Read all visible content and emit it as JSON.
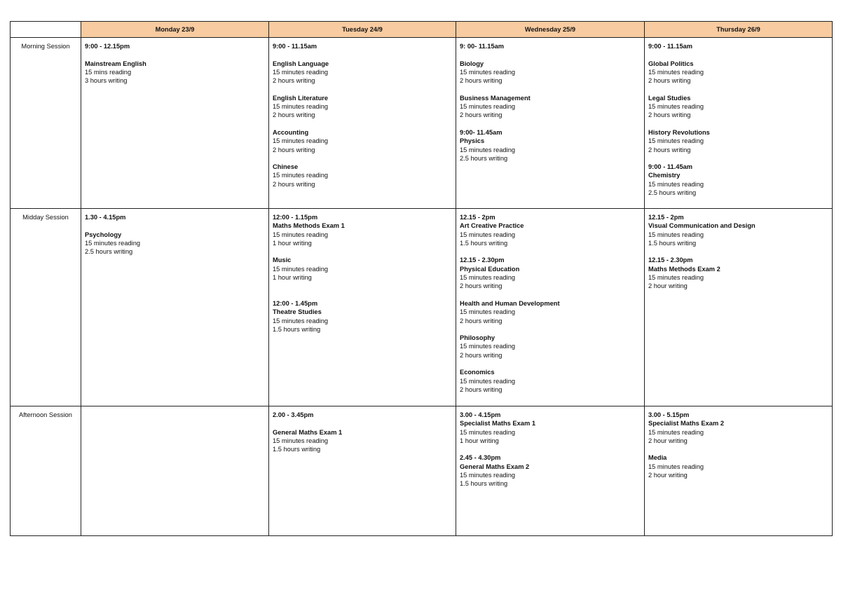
{
  "header": {
    "corner": "",
    "days": [
      "Monday 23/9",
      "Tuesday 24/9",
      "Wednesday 25/9",
      "Thursday 26/9"
    ]
  },
  "colors": {
    "header_bg": "#f8cba0",
    "border": "#222222"
  },
  "rows": [
    {
      "label": "Morning Session",
      "cells": [
        [
          {
            "t": "9:00 - 12.15pm",
            "b": true
          },
          {
            "t": ""
          },
          {
            "t": "Mainstream English",
            "b": true
          },
          {
            "t": "15 mins reading"
          },
          {
            "t": "3 hours writing"
          }
        ],
        [
          {
            "t": "9:00 - 11.15am",
            "b": true
          },
          {
            "t": ""
          },
          {
            "t": "English Language",
            "b": true
          },
          {
            "t": "15 minutes reading"
          },
          {
            "t": "2 hours writing"
          },
          {
            "t": ""
          },
          {
            "t": "English Literature",
            "b": true
          },
          {
            "t": "15 minutes reading"
          },
          {
            "t": "2 hours writing"
          },
          {
            "t": ""
          },
          {
            "t": "Accounting",
            "b": true
          },
          {
            "t": "15 minutes reading"
          },
          {
            "t": "2 hours writing"
          },
          {
            "t": ""
          },
          {
            "t": "Chinese",
            "b": true
          },
          {
            "t": "15 minutes reading"
          },
          {
            "t": "2 hours writing"
          }
        ],
        [
          {
            "t": "9: 00- 11.15am",
            "b": true
          },
          {
            "t": ""
          },
          {
            "t": "Biology",
            "b": true
          },
          {
            "t": "15 minutes reading"
          },
          {
            "t": "2 hours writing"
          },
          {
            "t": ""
          },
          {
            "t": "Business Management",
            "b": true
          },
          {
            "t": "15 minutes reading"
          },
          {
            "t": "2 hours writing"
          },
          {
            "t": ""
          },
          {
            "t": "9:00- 11.45am",
            "b": true
          },
          {
            "t": "Physics",
            "b": true
          },
          {
            "t": "15 minutes reading"
          },
          {
            "t": "2.5 hours writing"
          }
        ],
        [
          {
            "t": "9:00 - 11.15am",
            "b": true
          },
          {
            "t": ""
          },
          {
            "t": "Global Politics",
            "b": true
          },
          {
            "t": "15 minutes reading"
          },
          {
            "t": "2 hours writing"
          },
          {
            "t": ""
          },
          {
            "t": "Legal Studies",
            "b": true
          },
          {
            "t": "15 minutes reading"
          },
          {
            "t": "2 hours writing"
          },
          {
            "t": ""
          },
          {
            "t": "History Revolutions",
            "b": true
          },
          {
            "t": "15 minutes reading"
          },
          {
            "t": "2 hours writing"
          },
          {
            "t": ""
          },
          {
            "t": "9:00 - 11.45am",
            "b": true
          },
          {
            "t": "Chemistry",
            "b": true
          },
          {
            "t": "15 minutes reading"
          },
          {
            "t": "2.5 hours writing"
          }
        ]
      ]
    },
    {
      "label": "Midday Session",
      "cells": [
        [
          {
            "t": "1.30 - 4.15pm",
            "b": true
          },
          {
            "t": ""
          },
          {
            "t": "Psychology",
            "b": true
          },
          {
            "t": "15 minutes reading"
          },
          {
            "t": "2.5 hours writing"
          }
        ],
        [
          {
            "t": "12:00 - 1.15pm",
            "b": true
          },
          {
            "t": "Maths Methods Exam 1",
            "b": true
          },
          {
            "t": "15 minutes reading"
          },
          {
            "t": "1 hour writing"
          },
          {
            "t": ""
          },
          {
            "t": "Music",
            "b": true
          },
          {
            "t": "15 minutes reading"
          },
          {
            "t": "1 hour writing"
          },
          {
            "t": ""
          },
          {
            "t": ""
          },
          {
            "t": "12:00 - 1.45pm",
            "b": true
          },
          {
            "t": "Theatre Studies",
            "b": true
          },
          {
            "t": "15 minutes reading"
          },
          {
            "t": "1.5 hours writing"
          }
        ],
        [
          {
            "t": "12.15 - 2pm",
            "b": true
          },
          {
            "t": "Art Creative Practice",
            "b": true
          },
          {
            "t": "15 minutes reading"
          },
          {
            "t": "1.5 hours writing"
          },
          {
            "t": ""
          },
          {
            "t": "12.15 - 2.30pm",
            "b": true
          },
          {
            "t": "Physical Education",
            "b": true
          },
          {
            "t": "15 minutes reading"
          },
          {
            "t": "2 hours writing"
          },
          {
            "t": ""
          },
          {
            "t": "Health and Human Development",
            "b": true
          },
          {
            "t": "15 minutes reading"
          },
          {
            "t": "2 hours writing"
          },
          {
            "t": ""
          },
          {
            "t": "Philosophy",
            "b": true
          },
          {
            "t": "15 minutes reading"
          },
          {
            "t": "2 hours writing"
          },
          {
            "t": ""
          },
          {
            "t": "Economics",
            "b": true
          },
          {
            "t": "15 minutes reading"
          },
          {
            "t": "2 hours writing"
          }
        ],
        [
          {
            "t": "12.15 - 2pm",
            "b": true
          },
          {
            "t": "Visual Communication and Design",
            "b": true
          },
          {
            "t": "15 minutes reading"
          },
          {
            "t": "1.5 hours writing"
          },
          {
            "t": ""
          },
          {
            "t": "12.15 - 2.30pm",
            "b": true
          },
          {
            "t": "Maths Methods Exam 2",
            "b": true
          },
          {
            "t": "15 minutes reading"
          },
          {
            "t": "2 hour writing"
          }
        ]
      ]
    },
    {
      "label": "Afternoon Session",
      "cells": [
        [],
        [
          {
            "t": "2.00 - 3.45pm",
            "b": true
          },
          {
            "t": ""
          },
          {
            "t": "General Maths Exam 1",
            "b": true
          },
          {
            "t": "15 minutes reading"
          },
          {
            "t": "1.5 hours writing"
          }
        ],
        [
          {
            "t": "3.00 - 4.15pm",
            "b": true
          },
          {
            "t": "Specialist Maths Exam 1",
            "b": true
          },
          {
            "t": "15 minutes reading"
          },
          {
            "t": "1 hour writing"
          },
          {
            "t": ""
          },
          {
            "t": "2.45 - 4.30pm",
            "b": true
          },
          {
            "t": "General Maths Exam 2",
            "b": true
          },
          {
            "t": "15 minutes reading"
          },
          {
            "t": "1.5 hours writing"
          }
        ],
        [
          {
            "t": "3.00 - 5.15pm",
            "b": true
          },
          {
            "t": "Specialist Maths Exam 2",
            "b": true
          },
          {
            "t": "15 minutes reading"
          },
          {
            "t": "2 hour writing"
          },
          {
            "t": ""
          },
          {
            "t": "Media",
            "b": true
          },
          {
            "t": "15 minutes reading"
          },
          {
            "t": "2 hour writing"
          }
        ]
      ]
    }
  ]
}
